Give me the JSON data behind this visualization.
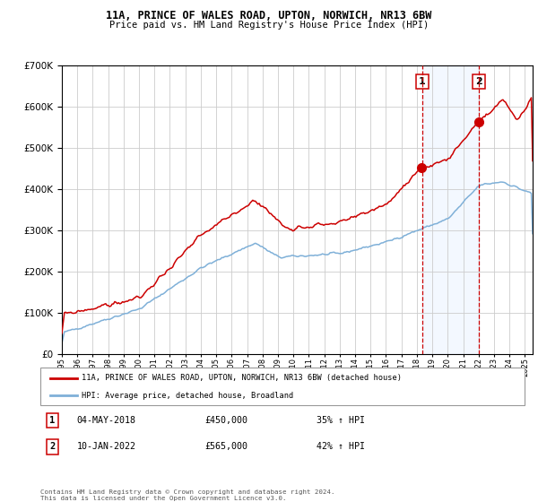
{
  "title": "11A, PRINCE OF WALES ROAD, UPTON, NORWICH, NR13 6BW",
  "subtitle": "Price paid vs. HM Land Registry's House Price Index (HPI)",
  "legend_line1": "11A, PRINCE OF WALES ROAD, UPTON, NORWICH, NR13 6BW (detached house)",
  "legend_line2": "HPI: Average price, detached house, Broadland",
  "sale1_label": "1",
  "sale2_label": "2",
  "sale1_date": "04-MAY-2018",
  "sale1_price": "£450,000",
  "sale1_hpi": "35% ↑ HPI",
  "sale2_date": "10-JAN-2022",
  "sale2_price": "£565,000",
  "sale2_hpi": "42% ↑ HPI",
  "footer": "Contains HM Land Registry data © Crown copyright and database right 2024.\nThis data is licensed under the Open Government Licence v3.0.",
  "red_color": "#cc0000",
  "blue_color": "#7fb0d8",
  "bg_shade_color": "#cce0ff",
  "grid_color": "#cccccc",
  "sale1_x": 2018.33,
  "sale2_x": 2022.03,
  "ylim": [
    0,
    700000
  ],
  "xlim_start": 1995,
  "xlim_end": 2025.5
}
